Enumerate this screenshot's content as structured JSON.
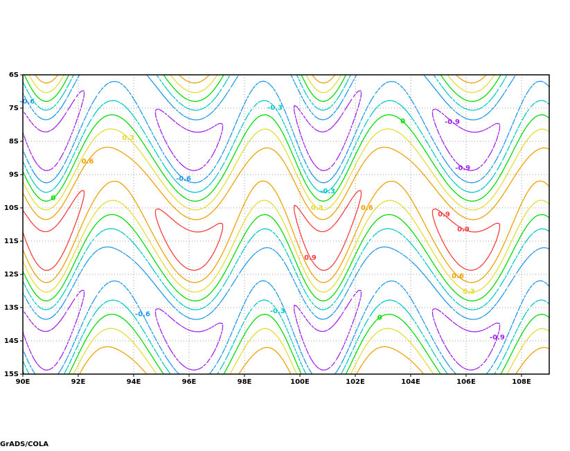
{
  "chart_data": {
    "type": "contour",
    "xlim": [
      90,
      109
    ],
    "ylim": [
      -15,
      -6
    ],
    "xticks": [
      {
        "value": 90,
        "label": "90E"
      },
      {
        "value": 92,
        "label": "92E"
      },
      {
        "value": 94,
        "label": "94E"
      },
      {
        "value": 96,
        "label": "96E"
      },
      {
        "value": 98,
        "label": "98E"
      },
      {
        "value": 100,
        "label": "100E"
      },
      {
        "value": 102,
        "label": "102E"
      },
      {
        "value": 104,
        "label": "104E"
      },
      {
        "value": 106,
        "label": "106E"
      },
      {
        "value": 108,
        "label": "108E"
      }
    ],
    "yticks": [
      {
        "value": -6,
        "label": "6S"
      },
      {
        "value": -7,
        "label": "7S"
      },
      {
        "value": -8,
        "label": "8S"
      },
      {
        "value": -9,
        "label": "9S"
      },
      {
        "value": -10,
        "label": "10S"
      },
      {
        "value": -11,
        "label": "11S"
      },
      {
        "value": -12,
        "label": "12S"
      },
      {
        "value": -13,
        "label": "13S"
      },
      {
        "value": -14,
        "label": "14S"
      },
      {
        "value": -15,
        "label": "15S"
      }
    ],
    "grid": true,
    "levels": [
      {
        "value": -0.9,
        "label": "-0.9",
        "color": "#a020f0"
      },
      {
        "value": -0.6,
        "label": "-0.6",
        "color": "#1e96f0"
      },
      {
        "value": -0.3,
        "label": "-0.3",
        "color": "#00c8c8"
      },
      {
        "value": 0,
        "label": "0",
        "color": "#00dc00"
      },
      {
        "value": 0.3,
        "label": "0.3",
        "color": "#e6dc32"
      },
      {
        "value": 0.6,
        "label": "0.6",
        "color": "#f0a000"
      },
      {
        "value": 0.9,
        "label": "0.9",
        "color": "#fa3c3c"
      }
    ],
    "footer": "GrADS/COLA"
  }
}
